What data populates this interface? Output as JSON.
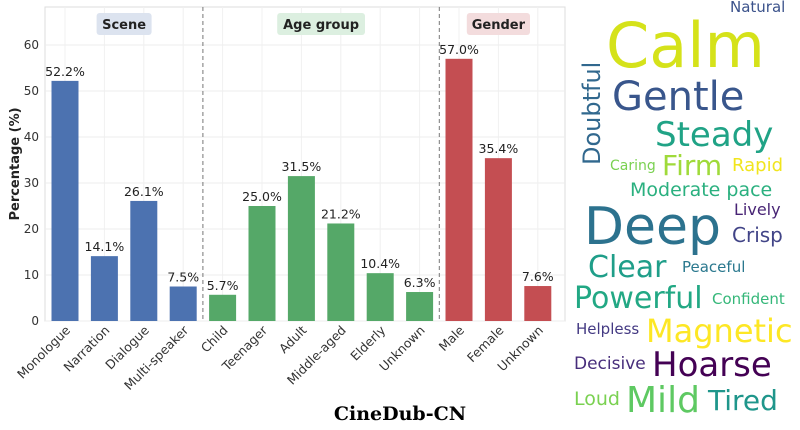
{
  "chart_data": {
    "type": "bar",
    "ylabel": "Percentage (%)",
    "ylim": [
      0,
      68
    ],
    "yticks": [
      0,
      10,
      20,
      30,
      40,
      50,
      60
    ],
    "grid": true,
    "groups": [
      {
        "name": "Scene",
        "color": "#4c72b0",
        "label_bg": "#dce3ef",
        "categories": [
          "Monologue",
          "Narration",
          "Dialogue",
          "Multi-speaker"
        ],
        "values": [
          52.2,
          14.1,
          26.1,
          7.5
        ],
        "labels": [
          "52.2%",
          "14.1%",
          "26.1%",
          "7.5%"
        ]
      },
      {
        "name": "Age group",
        "color": "#55a868",
        "label_bg": "#dcefe0",
        "categories": [
          "Child",
          "Teenager",
          "Adult",
          "Middle-aged",
          "Elderly",
          "Unknown"
        ],
        "values": [
          5.7,
          25.0,
          31.5,
          21.2,
          10.4,
          6.3
        ],
        "labels": [
          "5.7%",
          "25.0%",
          "31.5%",
          "21.2%",
          "10.4%",
          "6.3%"
        ]
      },
      {
        "name": "Gender",
        "color": "#c44e52",
        "label_bg": "#f3dcdd",
        "categories": [
          "Male",
          "Female",
          "Unknown"
        ],
        "values": [
          57.0,
          35.4,
          7.6
        ],
        "labels": [
          "57.0%",
          "35.4%",
          "7.6%"
        ]
      }
    ]
  },
  "wordcloud": [
    {
      "word": "Calm",
      "color": "#d5e21a"
    },
    {
      "word": "Natural",
      "color": "#3b528b"
    },
    {
      "word": "Doubtful",
      "color": "#31688e"
    },
    {
      "word": "Gentle",
      "color": "#39568c"
    },
    {
      "word": "Steady",
      "color": "#20a386"
    },
    {
      "word": "Firm",
      "color": "#9fda3a"
    },
    {
      "word": "Moderate pace",
      "color": "#2ab07f"
    },
    {
      "word": "Deep",
      "color": "#2c728e"
    },
    {
      "word": "Lively",
      "color": "#482475"
    },
    {
      "word": "Clear",
      "color": "#1f9e89"
    },
    {
      "word": "Crisp",
      "color": "#414487"
    },
    {
      "word": "Powerful",
      "color": "#22a884"
    },
    {
      "word": "Peaceful",
      "color": "#2a788e"
    },
    {
      "word": "Confident",
      "color": "#35b779"
    },
    {
      "word": "Helpless",
      "color": "#443a83"
    },
    {
      "word": "Magnetic",
      "color": "#fde725"
    },
    {
      "word": "Hoarse",
      "color": "#440154"
    },
    {
      "word": "Caring",
      "color": "#7ad151"
    },
    {
      "word": "Loud",
      "color": "#7ad151"
    },
    {
      "word": "Mild",
      "color": "#5ec962"
    },
    {
      "word": "Tired",
      "color": "#1f968b"
    },
    {
      "word": "Decisive",
      "color": "#472d7b"
    },
    {
      "word": "Rapid",
      "color": "#f1e51d"
    }
  ],
  "caption": "CineDub-CN"
}
